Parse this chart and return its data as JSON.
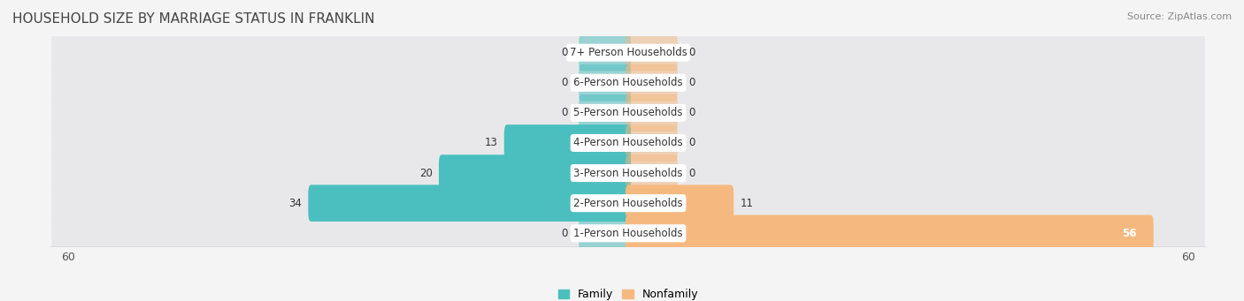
{
  "title": "HOUSEHOLD SIZE BY MARRIAGE STATUS IN FRANKLIN",
  "source": "Source: ZipAtlas.com",
  "categories": [
    "7+ Person Households",
    "6-Person Households",
    "5-Person Households",
    "4-Person Households",
    "3-Person Households",
    "2-Person Households",
    "1-Person Households"
  ],
  "family": [
    0,
    0,
    0,
    13,
    20,
    34,
    0
  ],
  "nonfamily": [
    0,
    0,
    0,
    0,
    0,
    11,
    56
  ],
  "family_color": "#4bbfbf",
  "nonfamily_color": "#f5b97f",
  "row_bg_color": "#e8e8ea",
  "fig_bg_color": "#f4f4f4",
  "xlim": 60,
  "bar_height": 0.62,
  "legend_family": "Family",
  "legend_nonfamily": "Nonfamily",
  "title_fontsize": 11,
  "source_fontsize": 8,
  "label_fontsize": 8.5,
  "value_fontsize": 8.5,
  "tick_fontsize": 9
}
